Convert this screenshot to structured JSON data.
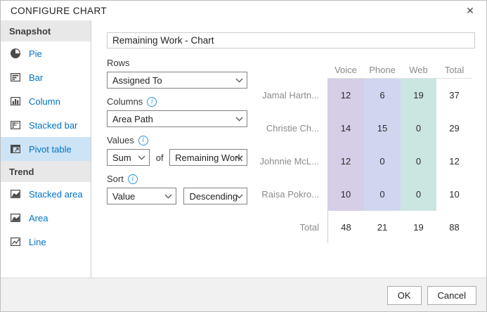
{
  "dialog": {
    "title": "CONFIGURE CHART",
    "close_glyph": "✕"
  },
  "sidebar": {
    "selected": "Pivot table",
    "sections": [
      {
        "label": "Snapshot",
        "items": [
          {
            "label": "Pie",
            "icon": "pie-icon"
          },
          {
            "label": "Bar",
            "icon": "bar-chart-icon"
          },
          {
            "label": "Column",
            "icon": "column-chart-icon"
          },
          {
            "label": "Stacked bar",
            "icon": "stacked-bar-icon"
          },
          {
            "label": "Pivot table",
            "icon": "pivot-table-icon"
          }
        ]
      },
      {
        "label": "Trend",
        "items": [
          {
            "label": "Stacked area",
            "icon": "stacked-area-icon"
          },
          {
            "label": "Area",
            "icon": "area-chart-icon"
          },
          {
            "label": "Line",
            "icon": "line-chart-icon"
          }
        ]
      }
    ]
  },
  "form": {
    "chart_name": "Remaining Work - Chart",
    "rows_label": "Rows",
    "rows_value": "Assigned To",
    "columns_label": "Columns",
    "columns_value": "Area Path",
    "values_label": "Values",
    "values_agg": "Sum",
    "values_of": "of",
    "values_field": "Remaining Work",
    "sort_label": "Sort",
    "sort_by": "Value",
    "sort_dir": "Descending"
  },
  "chart_data": {
    "type": "table",
    "title": "Remaining Work - Chart",
    "columns": [
      "Voice",
      "Phone",
      "Web",
      "Total"
    ],
    "column_colors": [
      "#d6cee6",
      "#d0d6ef",
      "#cbe5e1",
      "transparent"
    ],
    "rows": [
      {
        "label": "Jamal Hartn...",
        "values": [
          12,
          6,
          19,
          37
        ]
      },
      {
        "label": "Christie Ch...",
        "values": [
          14,
          15,
          0,
          29
        ]
      },
      {
        "label": "Johnnie McL...",
        "values": [
          12,
          0,
          0,
          12
        ]
      },
      {
        "label": "Raisa Pokro...",
        "values": [
          10,
          0,
          0,
          10
        ]
      }
    ],
    "total_row": {
      "label": "Total",
      "values": [
        48,
        21,
        19,
        88
      ]
    }
  },
  "footer": {
    "ok_label": "OK",
    "cancel_label": "Cancel"
  }
}
